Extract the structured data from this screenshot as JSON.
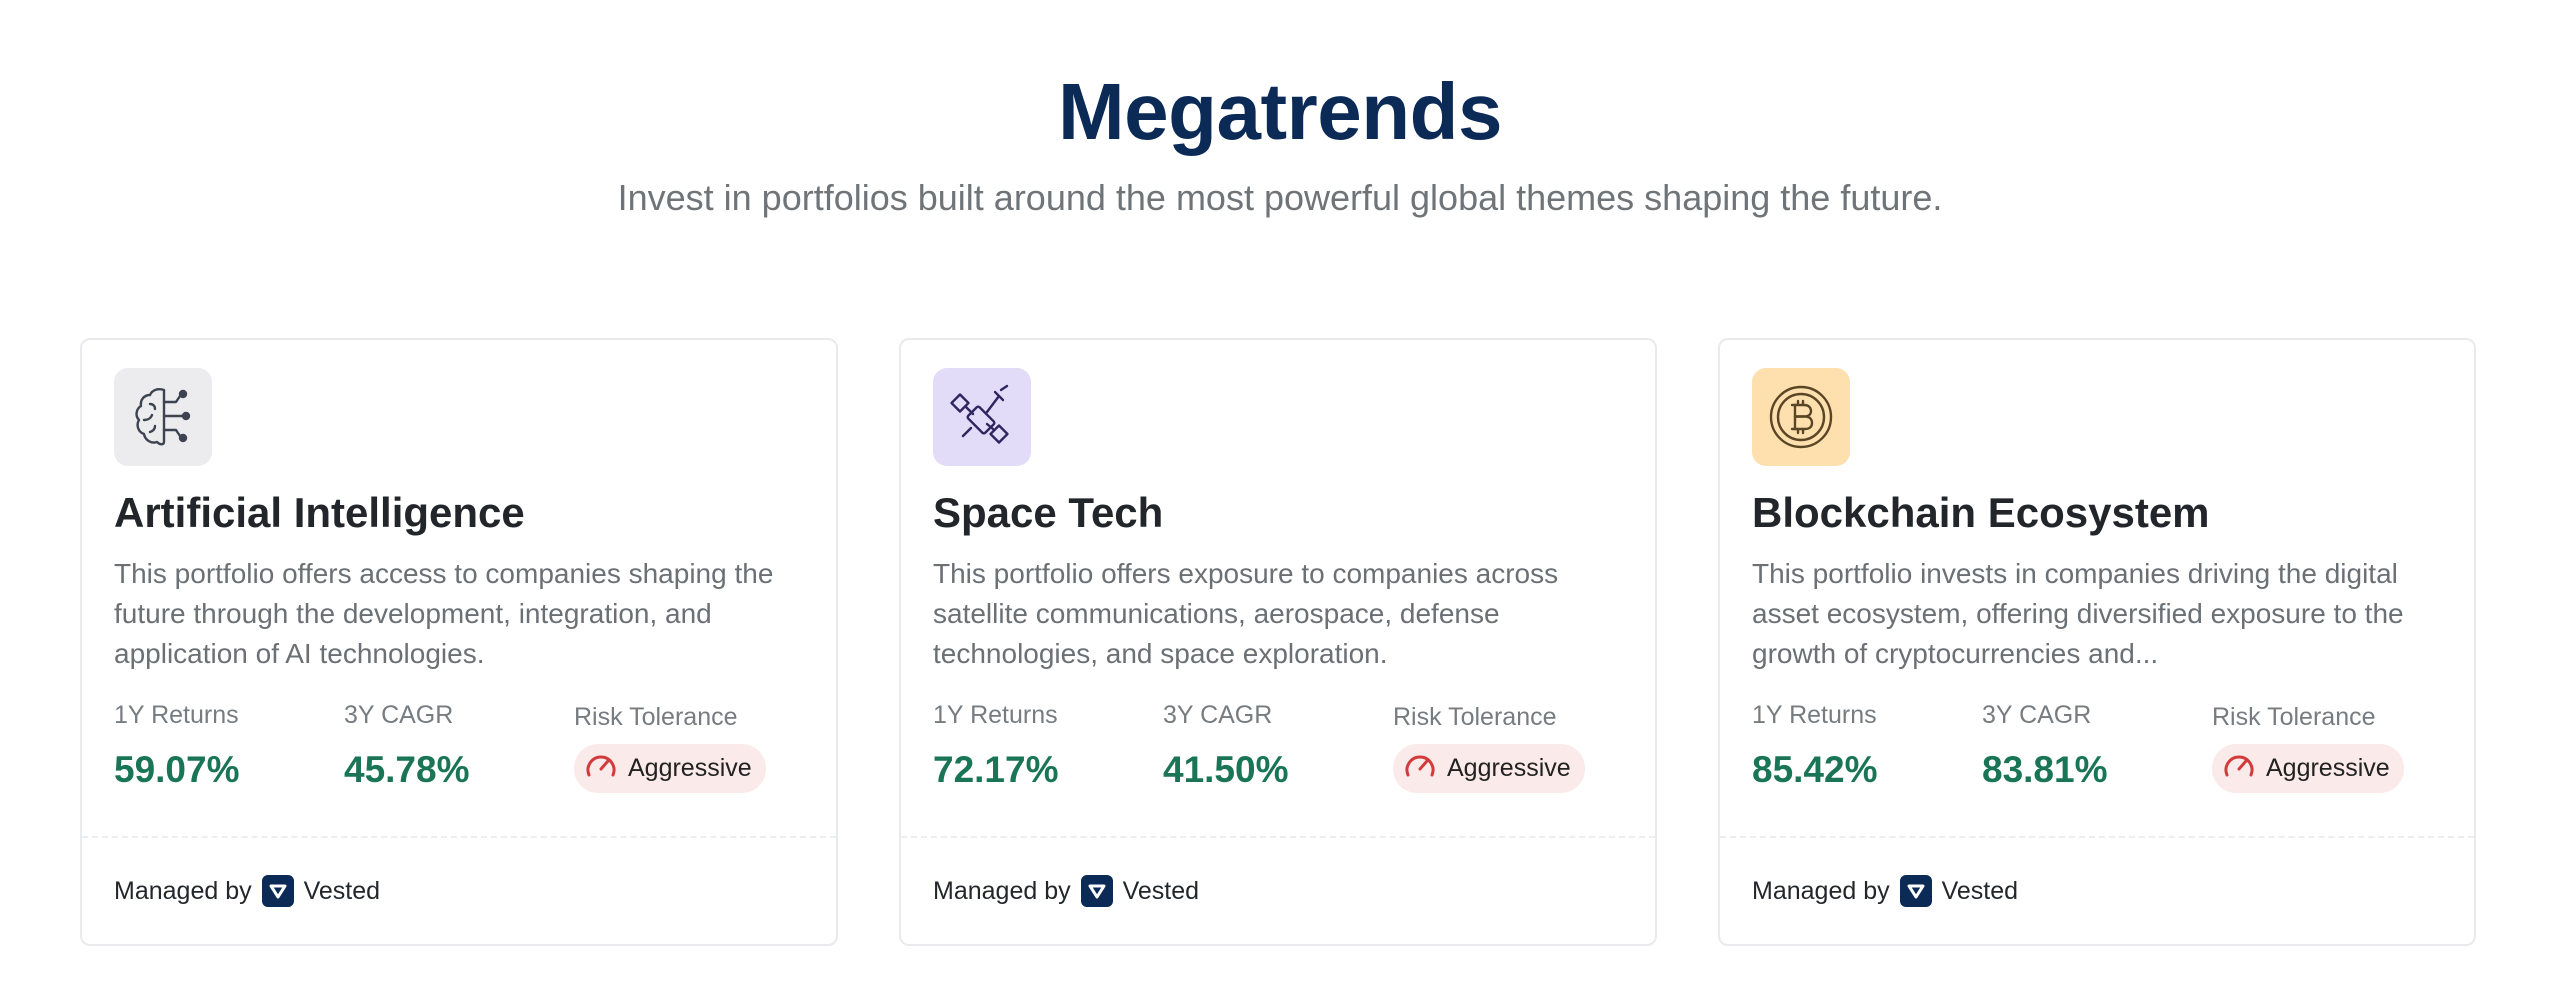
{
  "header": {
    "title": "Megatrends",
    "subtitle": "Invest in portfolios built around the most powerful global themes shaping the future."
  },
  "cards": [
    {
      "icon": "ai-brain-circuit-icon",
      "icon_bg": "#ececee",
      "title": "Artificial Intelligence",
      "description": "This portfolio offers access to companies shaping the future through the development, integration, and application of AI technologies.",
      "returns_label": "1Y Returns",
      "returns_value": "59.07%",
      "cagr_label": "3Y CAGR",
      "cagr_value": "45.78%",
      "risk_label": "Risk Tolerance",
      "risk_value": "Aggressive",
      "managed_label": "Managed by",
      "manager": "Vested"
    },
    {
      "icon": "satellite-icon",
      "icon_bg": "#e3dcf8",
      "title": "Space Tech",
      "description": "This portfolio offers exposure to companies across satellite communications, aerospace, defense technologies, and space exploration.",
      "returns_label": "1Y Returns",
      "returns_value": "72.17%",
      "cagr_label": "3Y CAGR",
      "cagr_value": "41.50%",
      "risk_label": "Risk Tolerance",
      "risk_value": "Aggressive",
      "managed_label": "Managed by",
      "manager": "Vested"
    },
    {
      "icon": "bitcoin-coin-icon",
      "icon_bg": "#fde0ad",
      "title": "Blockchain Ecosystem",
      "description": "This portfolio invests in companies driving the digital asset ecosystem, offering diversified exposure to the growth of cryptocurrencies and...",
      "returns_label": "1Y Returns",
      "returns_value": "85.42%",
      "cagr_label": "3Y CAGR",
      "cagr_value": "83.81%",
      "risk_label": "Risk Tolerance",
      "risk_value": "Aggressive",
      "managed_label": "Managed by",
      "manager": "Vested"
    }
  ],
  "colors": {
    "title": "#0b2a55",
    "positive_value": "#1a7556",
    "risk_badge_bg": "#fbeaea",
    "risk_icon": "#d23b3b",
    "brand": "#0b2a55"
  }
}
